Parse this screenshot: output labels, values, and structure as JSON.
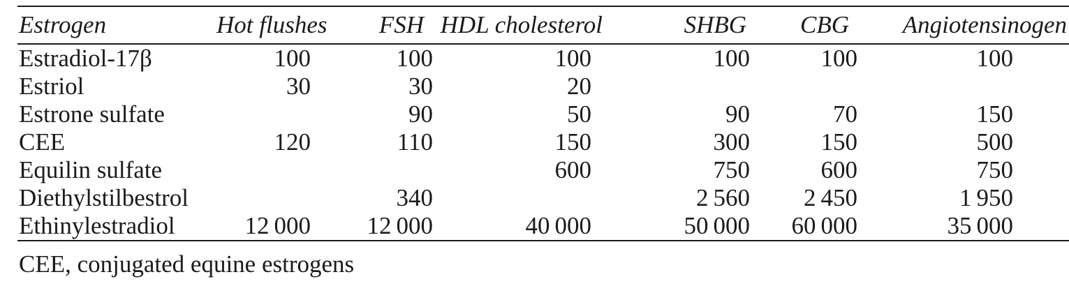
{
  "table": {
    "columns": [
      "Estrogen",
      "Hot flushes",
      "FSH",
      "HDL cholesterol",
      "SHBG",
      "CBG",
      "Angiotensinogen"
    ],
    "rows": [
      {
        "name": "Estradiol-17β",
        "values": [
          "100",
          "100",
          "100",
          "100",
          "100",
          "100"
        ]
      },
      {
        "name": "Estriol",
        "values": [
          "30",
          "30",
          "20",
          "",
          "",
          ""
        ]
      },
      {
        "name": "Estrone sulfate",
        "values": [
          "",
          "90",
          "50",
          "90",
          "70",
          "150"
        ]
      },
      {
        "name": "CEE",
        "values": [
          "120",
          "110",
          "150",
          "300",
          "150",
          "500"
        ]
      },
      {
        "name": "Equilin sulfate",
        "values": [
          "",
          "",
          "600",
          "750",
          "600",
          "750"
        ]
      },
      {
        "name": "Diethylstilbestrol",
        "values": [
          "",
          "340",
          "",
          "2 560",
          "2 450",
          "1 950"
        ]
      },
      {
        "name": "Ethinylestradiol",
        "values": [
          "12 000",
          "12 000",
          "40 000",
          "50 000",
          "60 000",
          "35 000"
        ]
      }
    ],
    "footnote": "CEE, conjugated equine estrogens"
  },
  "colors": {
    "text": "#1b1b1b",
    "rule": "#1b1b1b",
    "background": "#ffffff"
  }
}
